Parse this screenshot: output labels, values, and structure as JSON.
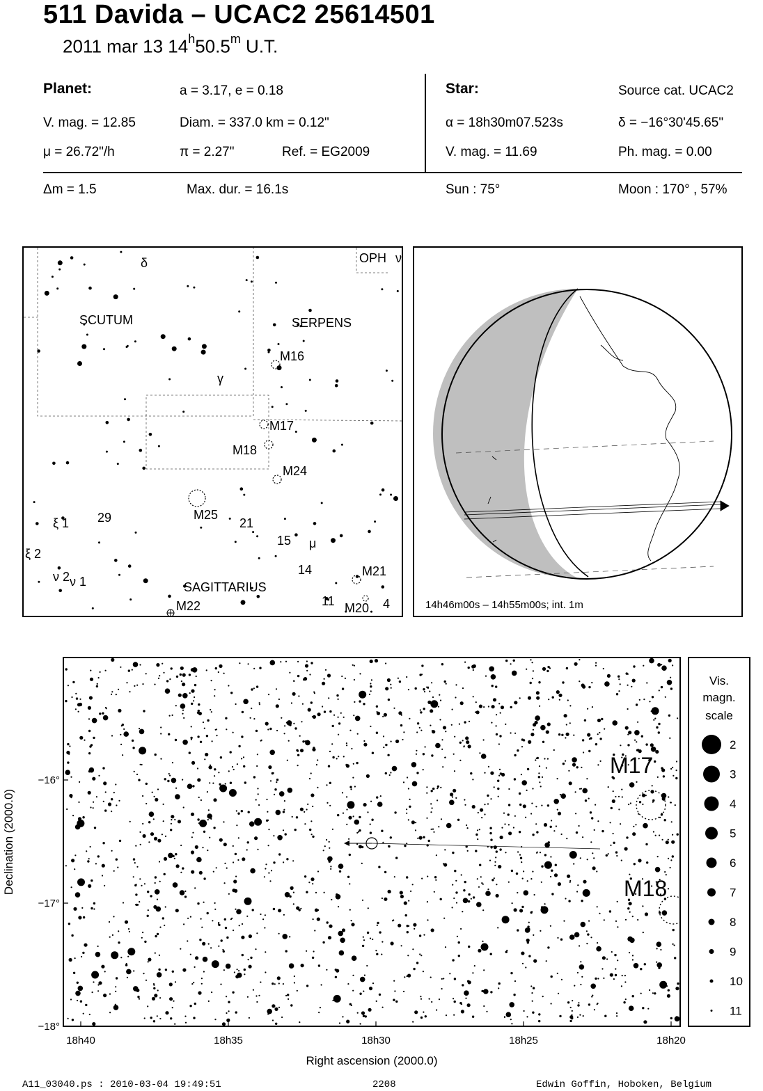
{
  "header": {
    "title": "511 Davida  –  UCAC2 25614501",
    "date": "2011 mar 13  14",
    "hour_unit": "h",
    "minutes": "50.5",
    "min_unit": "m",
    "tz": " U.T."
  },
  "planet": {
    "heading": "Planet:",
    "orbit": "a = 3.17, e = 0.18",
    "vmag": "V. mag. = 12.85",
    "diam": "Diam. = 337.0 km = 0.12\"",
    "mu": "μ =  26.72\"/h",
    "pi": "π =  2.27\"",
    "ref": "Ref. = EG2009"
  },
  "star": {
    "heading": "Star:",
    "source": "Source cat.  UCAC2",
    "ra": "α = 18h30m07.523s",
    "dec": "δ = −16°30'45.65\"",
    "vmag": "V. mag. = 11.69",
    "phmag": "Ph. mag. =  0.00"
  },
  "event": {
    "dm": "Δm = 1.5",
    "maxdur": "Max. dur. = 16.1s",
    "sun": "Sun :  75°",
    "moon": "Moon : 170° , 57%"
  },
  "finder_chart": {
    "constellations": [
      "SCUTUM",
      "SERPENS",
      "SAGITTARIUS",
      "OPH"
    ],
    "objects": [
      "M16",
      "M17",
      "M18",
      "M24",
      "M25",
      "M21",
      "M20",
      "M22"
    ],
    "star_labels": [
      "δ",
      "ν",
      "γ",
      "ξ 1",
      "ξ 2",
      "ν 2",
      "ν 1",
      "29",
      "21",
      "15",
      "μ",
      "14",
      "11",
      "4"
    ]
  },
  "globe": {
    "caption": "14h46m00s – 14h55m00s; int.  1m"
  },
  "chart_data": {
    "type": "scatter",
    "xlabel": "Right ascension (2000.0)",
    "ylabel": "Declination (2000.0)",
    "xticks": [
      "18h40",
      "18h35",
      "18h30",
      "18h25",
      "18h20"
    ],
    "yticks": [
      "−16°",
      "−17°",
      "−18°"
    ],
    "objects": [
      "M17",
      "M18"
    ],
    "legend_title": [
      "Vis.",
      "magn.",
      "scale"
    ],
    "legend": [
      "2",
      "3",
      "4",
      "5",
      "6",
      "7",
      "8",
      "9",
      "10",
      "11"
    ]
  },
  "footer": {
    "file": "A11_03040.ps : 2010-03-04 19:49:51",
    "number": "2208",
    "author": "Edwin Goffin, Hoboken, Belgium"
  }
}
